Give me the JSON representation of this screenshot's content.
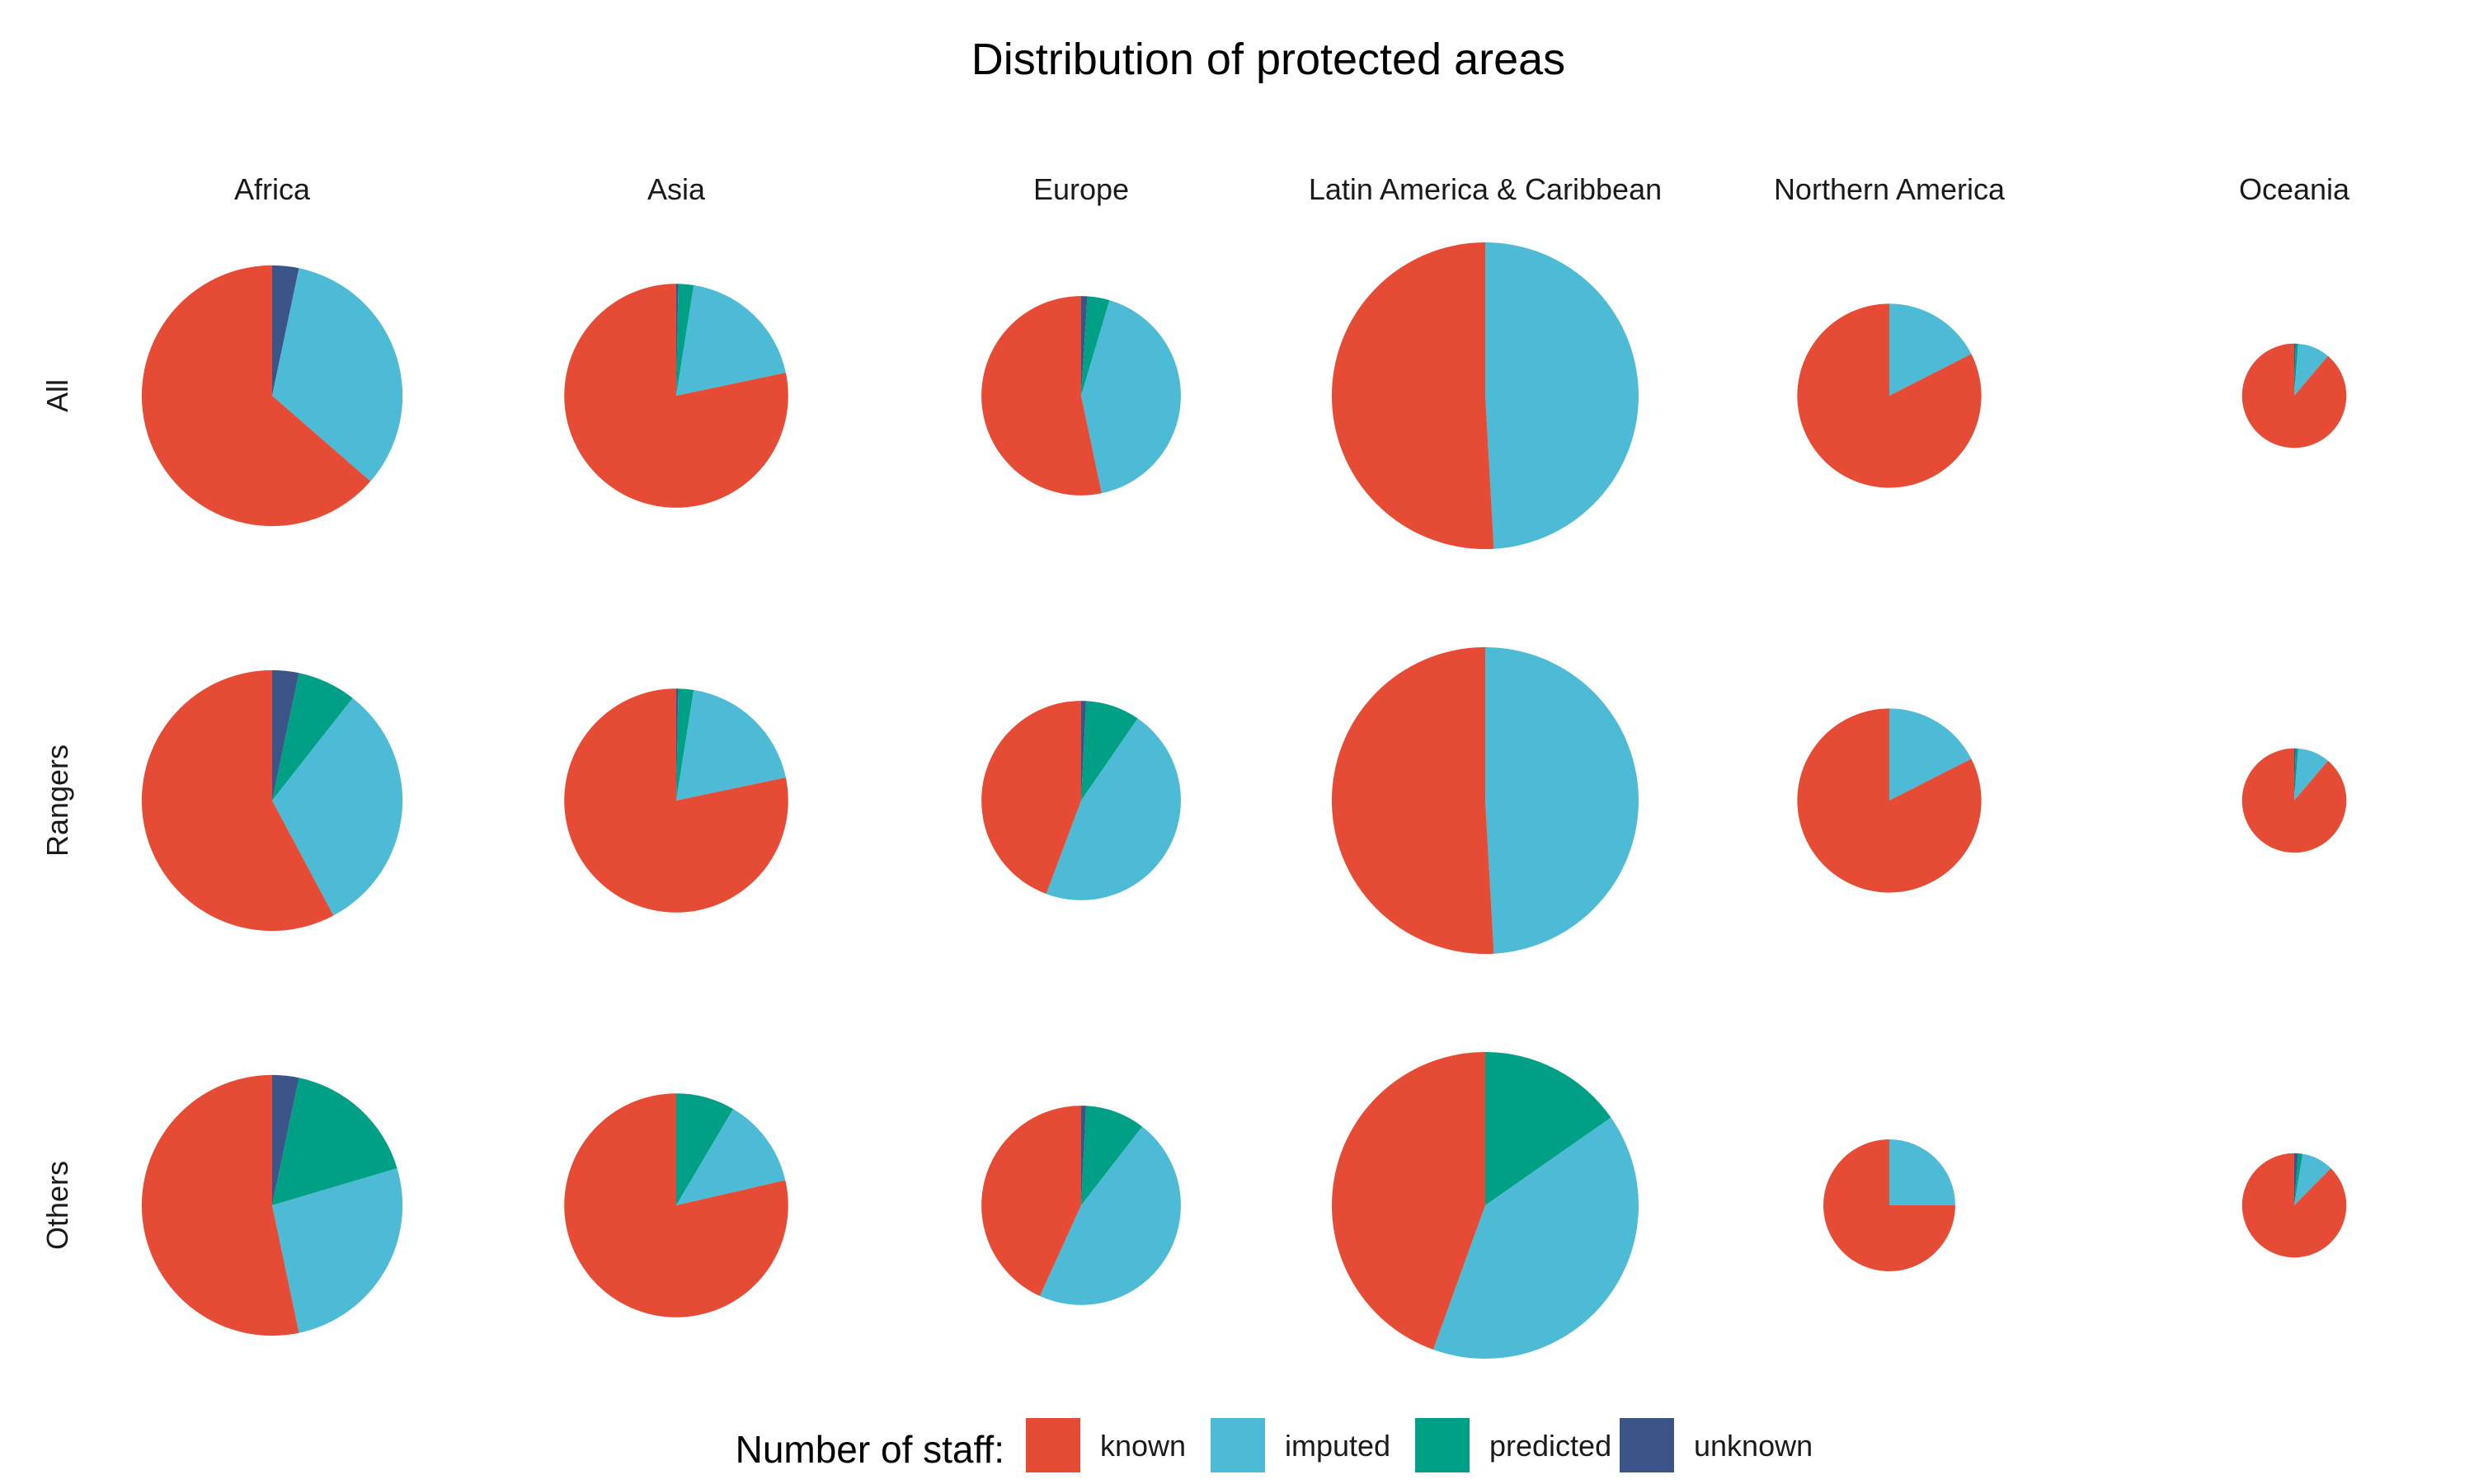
{
  "chart_data": {
    "type": "pie",
    "title": "Distribution of protected areas",
    "columns": [
      "Africa",
      "Asia",
      "Europe",
      "Latin America & Caribbean",
      "Northern America",
      "Oceania"
    ],
    "rows": [
      "All",
      "Rangers",
      "Others"
    ],
    "categories": [
      "known",
      "imputed",
      "predicted",
      "unknown"
    ],
    "colors": {
      "known": "#E64B35",
      "imputed": "#4DBBD5",
      "predicted": "#00A087",
      "unknown": "#3C5488"
    },
    "pie_order": [
      "unknown",
      "predicted",
      "imputed",
      "known"
    ],
    "legend": {
      "title": "Number of staff:",
      "position": "bottom"
    },
    "size_encoding": "relative total per panel",
    "panels": [
      {
        "row": "All",
        "column": "Africa",
        "relative_size": 0.85,
        "values": {
          "known": 0.636,
          "imputed": 0.331,
          "predicted": 0.0,
          "unknown": 0.033
        }
      },
      {
        "row": "All",
        "column": "Asia",
        "relative_size": 0.73,
        "values": {
          "known": 0.783,
          "imputed": 0.192,
          "predicted": 0.022,
          "unknown": 0.003
        }
      },
      {
        "row": "All",
        "column": "Europe",
        "relative_size": 0.65,
        "values": {
          "known": 0.533,
          "imputed": 0.421,
          "predicted": 0.036,
          "unknown": 0.01
        }
      },
      {
        "row": "All",
        "column": "Latin America & Caribbean",
        "relative_size": 1.0,
        "values": {
          "known": 0.509,
          "imputed": 0.491,
          "predicted": 0.0,
          "unknown": 0.0
        }
      },
      {
        "row": "All",
        "column": "Northern America",
        "relative_size": 0.6,
        "values": {
          "known": 0.825,
          "imputed": 0.175,
          "predicted": 0.0,
          "unknown": 0.0
        }
      },
      {
        "row": "All",
        "column": "Oceania",
        "relative_size": 0.34,
        "values": {
          "known": 0.888,
          "imputed": 0.1,
          "predicted": 0.008,
          "unknown": 0.004
        }
      },
      {
        "row": "Rangers",
        "column": "Africa",
        "relative_size": 0.85,
        "values": {
          "known": 0.578,
          "imputed": 0.316,
          "predicted": 0.073,
          "unknown": 0.033
        }
      },
      {
        "row": "Rangers",
        "column": "Asia",
        "relative_size": 0.73,
        "values": {
          "known": 0.783,
          "imputed": 0.192,
          "predicted": 0.022,
          "unknown": 0.003
        }
      },
      {
        "row": "Rangers",
        "column": "Europe",
        "relative_size": 0.65,
        "values": {
          "known": 0.443,
          "imputed": 0.461,
          "predicted": 0.088,
          "unknown": 0.008
        }
      },
      {
        "row": "Rangers",
        "column": "Latin America & Caribbean",
        "relative_size": 1.0,
        "values": {
          "known": 0.509,
          "imputed": 0.491,
          "predicted": 0.0,
          "unknown": 0.0
        }
      },
      {
        "row": "Rangers",
        "column": "Northern America",
        "relative_size": 0.6,
        "values": {
          "known": 0.825,
          "imputed": 0.175,
          "predicted": 0.0,
          "unknown": 0.0
        }
      },
      {
        "row": "Rangers",
        "column": "Oceania",
        "relative_size": 0.34,
        "values": {
          "known": 0.888,
          "imputed": 0.1,
          "predicted": 0.008,
          "unknown": 0.004
        }
      },
      {
        "row": "Others",
        "column": "Africa",
        "relative_size": 0.85,
        "values": {
          "known": 0.533,
          "imputed": 0.263,
          "predicted": 0.171,
          "unknown": 0.033
        }
      },
      {
        "row": "Others",
        "column": "Asia",
        "relative_size": 0.73,
        "values": {
          "known": 0.786,
          "imputed": 0.129,
          "predicted": 0.085,
          "unknown": 0.0
        }
      },
      {
        "row": "Others",
        "column": "Europe",
        "relative_size": 0.65,
        "values": {
          "known": 0.432,
          "imputed": 0.463,
          "predicted": 0.097,
          "unknown": 0.008
        }
      },
      {
        "row": "Others",
        "column": "Latin America & Caribbean",
        "relative_size": 1.0,
        "values": {
          "known": 0.445,
          "imputed": 0.402,
          "predicted": 0.153,
          "unknown": 0.0
        }
      },
      {
        "row": "Others",
        "column": "Northern America",
        "relative_size": 0.43,
        "values": {
          "known": 0.75,
          "imputed": 0.25,
          "predicted": 0.0,
          "unknown": 0.0
        }
      },
      {
        "row": "Others",
        "column": "Oceania",
        "relative_size": 0.34,
        "values": {
          "known": 0.876,
          "imputed": 0.098,
          "predicted": 0.014,
          "unknown": 0.012
        }
      }
    ]
  }
}
